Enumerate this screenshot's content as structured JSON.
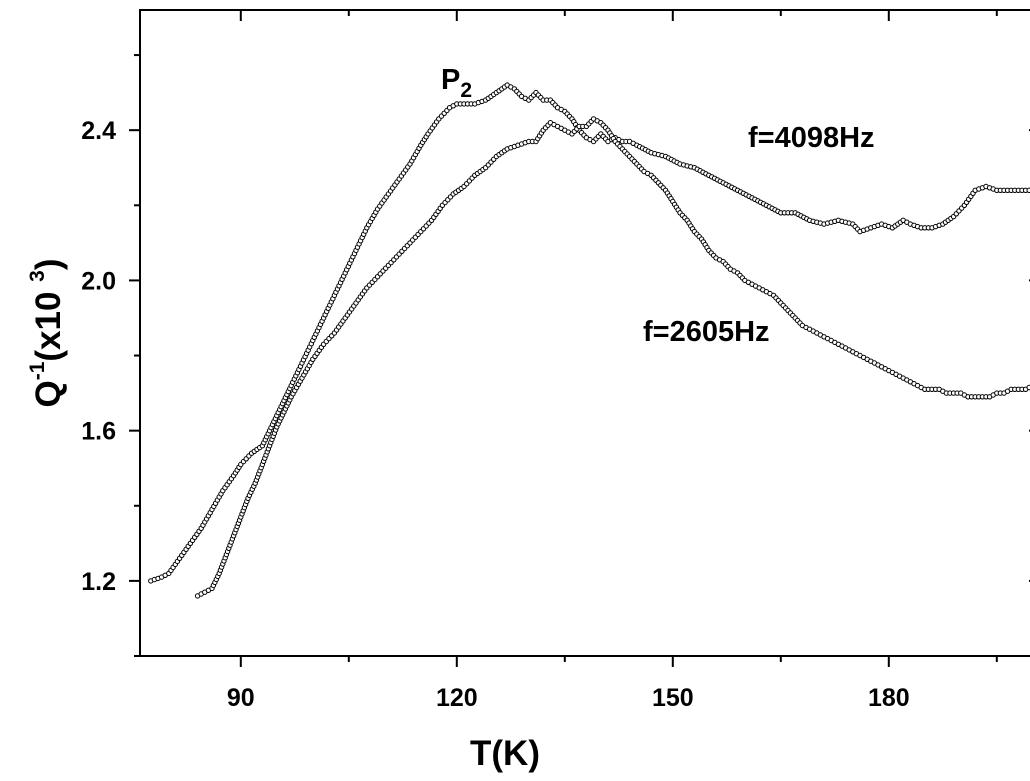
{
  "chart_data": {
    "type": "scatter",
    "xlabel": "T(K)",
    "ylabel": {
      "main": "Q",
      "sup1": "-1",
      "mid": "(x10 ",
      "sup2": "3",
      "close": ")"
    },
    "xlim": [
      76,
      201
    ],
    "ylim": [
      1.0,
      2.72
    ],
    "x_ticks": [
      90,
      120,
      150,
      180
    ],
    "x_tick_labels": [
      "90",
      "120",
      "150",
      "180"
    ],
    "y_ticks": [
      1.2,
      1.6,
      2.0,
      2.4
    ],
    "y_tick_labels": [
      "1.2",
      "1.6",
      "2.0",
      "2.4"
    ],
    "annotations": {
      "peak": "P",
      "peak_sub": "2"
    },
    "marker_color": "#000000",
    "series": [
      {
        "name": "f=4098Hz",
        "x": [
          77.5,
          79,
          80,
          81.5,
          83,
          84.5,
          86,
          87.5,
          89,
          90,
          91.5,
          93,
          94,
          95,
          96,
          97,
          98.5,
          100,
          101.5,
          103,
          104.5,
          106,
          107.5,
          109,
          110.5,
          112,
          113.5,
          115,
          116,
          117.5,
          119,
          120,
          121,
          122.5,
          124,
          125.5,
          127,
          128,
          129,
          130,
          131,
          132,
          133,
          134,
          135,
          136,
          137,
          138,
          139,
          140,
          141,
          142,
          143,
          144,
          145,
          147,
          149,
          151,
          153,
          155,
          157,
          159,
          161,
          163,
          165,
          167,
          169,
          171,
          173,
          175,
          176,
          177.5,
          179,
          180.5,
          182,
          183,
          184.5,
          186,
          187.5,
          189,
          190.5,
          192,
          193.5,
          195,
          196.5,
          198,
          200
        ],
        "y": [
          1.2,
          1.21,
          1.22,
          1.26,
          1.3,
          1.34,
          1.39,
          1.44,
          1.48,
          1.51,
          1.54,
          1.56,
          1.6,
          1.64,
          1.68,
          1.72,
          1.78,
          1.84,
          1.9,
          1.96,
          2.02,
          2.08,
          2.14,
          2.19,
          2.23,
          2.27,
          2.31,
          2.36,
          2.39,
          2.43,
          2.46,
          2.47,
          2.47,
          2.47,
          2.48,
          2.5,
          2.52,
          2.51,
          2.49,
          2.48,
          2.5,
          2.48,
          2.48,
          2.46,
          2.45,
          2.43,
          2.4,
          2.38,
          2.37,
          2.39,
          2.37,
          2.38,
          2.37,
          2.37,
          2.36,
          2.34,
          2.33,
          2.31,
          2.3,
          2.28,
          2.26,
          2.24,
          2.22,
          2.2,
          2.18,
          2.18,
          2.16,
          2.15,
          2.16,
          2.15,
          2.13,
          2.14,
          2.15,
          2.14,
          2.16,
          2.15,
          2.14,
          2.14,
          2.15,
          2.17,
          2.2,
          2.24,
          2.25,
          2.24,
          2.24,
          2.24,
          2.24
        ]
      },
      {
        "name": "f=2605Hz",
        "x": [
          84,
          85,
          86,
          87,
          88,
          89,
          90,
          91,
          92,
          93,
          94,
          95,
          96,
          97,
          98.5,
          100,
          101.5,
          103,
          104.5,
          106,
          107.5,
          109,
          110.5,
          112,
          113.5,
          115,
          116.5,
          118,
          119.5,
          121,
          122.5,
          124,
          125.5,
          127,
          128.5,
          130,
          131,
          132,
          133,
          134,
          135,
          136,
          137,
          138,
          139,
          140,
          141,
          142,
          143,
          144,
          145,
          146,
          147,
          148,
          149,
          150,
          151,
          152,
          153,
          154,
          155,
          156,
          157,
          158,
          159,
          160,
          161,
          162,
          163,
          164,
          165,
          166,
          167,
          168,
          169,
          170,
          171,
          172,
          173,
          174,
          175,
          176,
          177,
          178,
          179,
          180,
          181,
          182,
          183,
          184,
          185,
          186,
          187,
          188,
          189,
          190,
          191,
          192,
          193,
          194,
          195,
          196,
          197,
          198,
          199,
          200
        ],
        "y": [
          1.16,
          1.17,
          1.18,
          1.22,
          1.27,
          1.32,
          1.37,
          1.42,
          1.46,
          1.51,
          1.56,
          1.61,
          1.65,
          1.69,
          1.74,
          1.79,
          1.83,
          1.86,
          1.9,
          1.94,
          1.98,
          2.01,
          2.04,
          2.07,
          2.1,
          2.13,
          2.16,
          2.2,
          2.23,
          2.25,
          2.28,
          2.3,
          2.33,
          2.35,
          2.36,
          2.37,
          2.37,
          2.4,
          2.42,
          2.41,
          2.4,
          2.39,
          2.41,
          2.41,
          2.43,
          2.42,
          2.4,
          2.37,
          2.35,
          2.33,
          2.31,
          2.29,
          2.28,
          2.26,
          2.24,
          2.21,
          2.18,
          2.16,
          2.13,
          2.11,
          2.08,
          2.06,
          2.05,
          2.03,
          2.02,
          2.0,
          1.99,
          1.98,
          1.97,
          1.96,
          1.94,
          1.92,
          1.9,
          1.88,
          1.87,
          1.86,
          1.85,
          1.84,
          1.83,
          1.82,
          1.81,
          1.8,
          1.79,
          1.78,
          1.77,
          1.76,
          1.75,
          1.74,
          1.73,
          1.72,
          1.71,
          1.71,
          1.71,
          1.7,
          1.7,
          1.7,
          1.69,
          1.69,
          1.69,
          1.69,
          1.7,
          1.7,
          1.71,
          1.71,
          1.71,
          1.72
        ]
      }
    ]
  }
}
